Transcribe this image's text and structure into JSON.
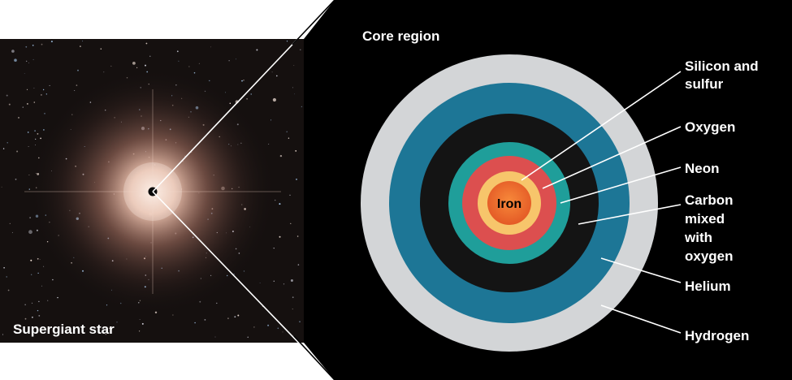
{
  "left_panel": {
    "caption": "Supergiant star"
  },
  "right_panel": {
    "title": "Core region",
    "center_label": "Iron",
    "layer_labels": {
      "silicon_sulfur": [
        "Silicon and",
        "sulfur"
      ],
      "oxygen": [
        "Oxygen"
      ],
      "neon": [
        "Neon"
      ],
      "carbon_oxygen": [
        "Carbon",
        "mixed",
        "with",
        "oxygen"
      ],
      "helium": [
        "Helium"
      ],
      "hydrogen": [
        "Hydrogen"
      ]
    }
  },
  "colors": {
    "hydrogen": "#d3d5d7",
    "helium": "#1d7696",
    "carbon_oxygen": "#141414",
    "neon": "#1f9e9a",
    "oxygen": "#dc4f4f",
    "silicon_sulfur": "#f7c56b",
    "iron": "#ee6a2c",
    "background": "#000000"
  }
}
